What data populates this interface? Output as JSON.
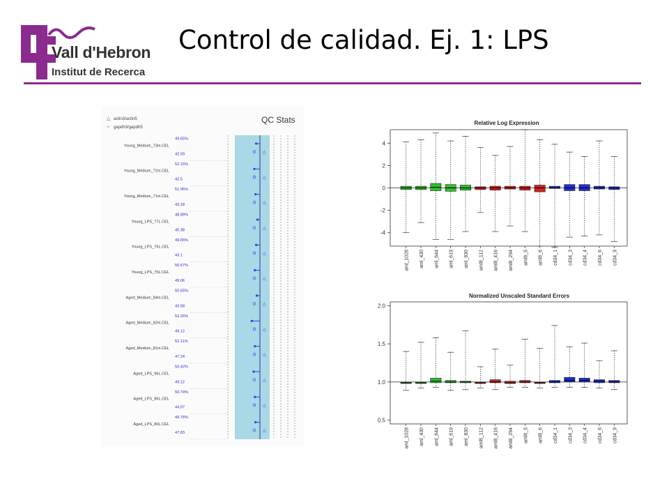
{
  "slide": {
    "title": "Control de calidad. Ej. 1: LPS",
    "logo_line1": "Vall d'Hebron",
    "logo_line2": "Institut de Recerca",
    "accent_color": "#8b2a8f"
  },
  "chart_data": [
    {
      "type": "dot-plot",
      "title": "QC Stats",
      "legend": [
        "actin3/actin5",
        "gapdh3/gapdh5"
      ],
      "samples": [
        {
          "name": "Young_Medium_73m.CEL",
          "pct_present": "49.65%",
          "background": "42.59"
        },
        {
          "name": "Young_Medium_72m.CEL",
          "pct_present": "52.15%",
          "background": "42.5"
        },
        {
          "name": "Young_Medium_71m.CEL",
          "pct_present": "51.95%",
          "background": "43.18"
        },
        {
          "name": "Young_LPS_77L.CEL",
          "pct_present": "48.89%",
          "background": "45.38"
        },
        {
          "name": "Young_LPS_76L.CEL",
          "pct_present": "49.65%",
          "background": "43.1"
        },
        {
          "name": "Young_LPS_75L.CEL",
          "pct_present": "50.57%",
          "background": "49.06"
        },
        {
          "name": "Aged_Medium_84m.CEL",
          "pct_present": "50.65%",
          "background": "43.58"
        },
        {
          "name": "Aged_Medium_82m.CEL",
          "pct_present": "53.26%",
          "background": "49.12"
        },
        {
          "name": "Aged_Medium_81m.CEL",
          "pct_present": "52.11%",
          "background": "47.24"
        },
        {
          "name": "Aged_LPS_96L.CEL",
          "pct_present": "50.42%",
          "background": "49.12"
        },
        {
          "name": "Aged_LPS_86L.CEL",
          "pct_present": "50.74%",
          "background": "44.97"
        },
        {
          "name": "Aged_LPS_80L.CEL",
          "pct_present": "49.76%",
          "background": "47.83"
        }
      ],
      "scale_factor_offsets": [
        -0.3,
        -0.45,
        -0.35,
        -0.2,
        -0.3,
        -0.4,
        -0.25,
        -0.65,
        -0.4,
        -0.5,
        -0.4,
        -0.35
      ],
      "shaded_band_color": "#a9d8e6",
      "point_color": "#3a3ae0"
    },
    {
      "type": "boxplot",
      "title": "Relative Log Expression",
      "categories": [
        "aml_1028",
        "aml_430",
        "aml_644",
        "aml_619",
        "aml_830",
        "aml8_112",
        "aml8_416",
        "aml8_294",
        "aml8_5",
        "aml8_6",
        "cd34_1",
        "cd34_3",
        "cd34_4",
        "cd34_6",
        "cd34_9"
      ],
      "groups": [
        "green",
        "green",
        "green",
        "green",
        "green",
        "red",
        "red",
        "red",
        "red",
        "red",
        "blue",
        "blue",
        "blue",
        "blue",
        "blue"
      ],
      "group_colors": {
        "green": "#2ec02e",
        "red": "#d42020",
        "blue": "#1f2fcf"
      },
      "q1": [
        -0.15,
        -0.15,
        -0.25,
        -0.3,
        -0.2,
        -0.15,
        -0.2,
        -0.1,
        -0.2,
        -0.35,
        -0.05,
        -0.25,
        -0.25,
        -0.1,
        -0.15
      ],
      "median": [
        0,
        0,
        0.05,
        0,
        0,
        0,
        0,
        0,
        0,
        0,
        0,
        0,
        0,
        0,
        0
      ],
      "q3": [
        0.15,
        0.15,
        0.4,
        0.3,
        0.25,
        0.1,
        0.15,
        0.15,
        0.15,
        0.25,
        0.15,
        0.3,
        0.3,
        0.15,
        0.1
      ],
      "whisker_low": [
        -4,
        -3.1,
        -4.6,
        -4.6,
        -3.9,
        -2.2,
        -3.9,
        -3.4,
        -3.9,
        -5.2,
        -5.3,
        -4.4,
        -4.3,
        -4.2,
        -4.8
      ],
      "whisker_high": [
        4.1,
        4.3,
        4.9,
        4.2,
        4.6,
        3.6,
        2.9,
        3.7,
        5.2,
        4.3,
        3.9,
        3.2,
        2.8,
        4.2,
        2.8
      ],
      "ylim": [
        -5.2,
        5.2
      ],
      "yticks": [
        -4,
        -2,
        0,
        2,
        4
      ],
      "ytick_labels": [
        "-4",
        "-2",
        "0",
        "2",
        "4"
      ],
      "reference_line": 0
    },
    {
      "type": "boxplot",
      "title": "Normalized Unscaled Standard Errors",
      "categories": [
        "aml_1028",
        "aml_430",
        "aml_644",
        "aml_619",
        "aml_830",
        "aml8_112",
        "aml8_416",
        "aml8_294",
        "aml8_5",
        "aml8_6",
        "cd34_1",
        "cd34_3",
        "cd34_4",
        "cd34_6",
        "cd34_9"
      ],
      "groups": [
        "green",
        "green",
        "green",
        "green",
        "green",
        "red",
        "red",
        "red",
        "red",
        "red",
        "blue",
        "blue",
        "blue",
        "blue",
        "blue"
      ],
      "group_colors": {
        "green": "#2ec02e",
        "red": "#d42020",
        "blue": "#1f2fcf"
      },
      "q1": [
        0.98,
        0.98,
        0.99,
        0.99,
        0.99,
        0.98,
        0.99,
        0.98,
        0.99,
        0.98,
        0.99,
        1.0,
        1.0,
        0.99,
        0.99
      ],
      "median": [
        0.99,
        0.99,
        1.01,
        1.0,
        1.0,
        0.99,
        1.0,
        0.99,
        1.0,
        0.99,
        1.0,
        1.02,
        1.02,
        1.01,
        1.0
      ],
      "q3": [
        1.0,
        1.0,
        1.05,
        1.02,
        1.01,
        1.0,
        1.03,
        1.01,
        1.02,
        1.0,
        1.02,
        1.06,
        1.05,
        1.03,
        1.02
      ],
      "whisker_low": [
        0.89,
        0.92,
        0.93,
        0.89,
        0.9,
        0.92,
        0.9,
        0.93,
        0.93,
        0.92,
        0.93,
        0.93,
        0.93,
        0.92,
        0.9
      ],
      "whisker_high": [
        1.4,
        1.52,
        1.58,
        1.39,
        1.67,
        1.2,
        1.43,
        1.22,
        1.56,
        1.44,
        1.74,
        1.46,
        1.51,
        1.28,
        1.41
      ],
      "ylim": [
        0.45,
        2.05
      ],
      "yticks": [
        0.5,
        1.0,
        1.5,
        2.0
      ],
      "ytick_labels": [
        "0.5",
        "1.0",
        "1.5",
        "2.0"
      ],
      "reference_line": 1.0
    }
  ]
}
